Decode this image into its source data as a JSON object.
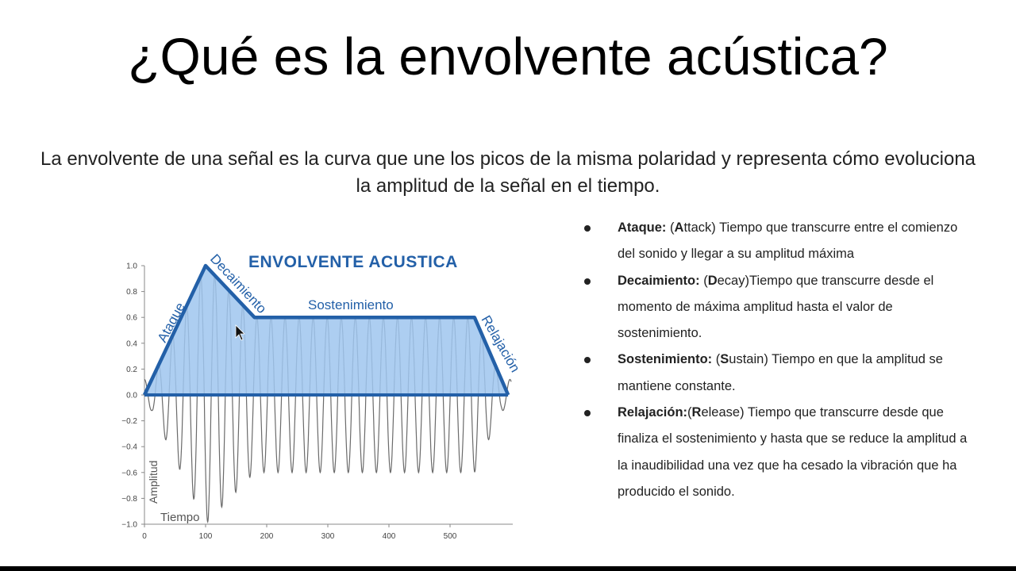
{
  "slide": {
    "title": "¿Qué es la envolvente acústica?",
    "intro": "La envolvente de una señal es la curva que une los picos de la misma polaridad y representa cómo evoluciona la amplitud de la señal en el tiempo."
  },
  "figure": {
    "banner": "ENVOLVENTE ACUSTICA",
    "stage_labels": {
      "attack": "Ataque",
      "decay": "Decaimiento",
      "sustain": "Sostenimiento",
      "release": "Relajación"
    },
    "y_axis_label": "Amplitud",
    "x_axis_label": "Tiempo",
    "colors": {
      "envelope": "#2360a8",
      "fill": "#9fc6ee",
      "wave": "#6b6b6b"
    }
  },
  "chart_data": {
    "type": "line",
    "title": "ENVOLVENTE ACUSTICA",
    "xlabel": "Tiempo",
    "ylabel": "Amplitud",
    "xlim": [
      0,
      600
    ],
    "ylim": [
      -1.0,
      1.0
    ],
    "x_ticks": [
      "0",
      "100",
      "200",
      "300",
      "400",
      "500"
    ],
    "y_ticks": [
      "1.0",
      "0.8",
      "0.6",
      "0.4",
      "0.2",
      "0.0",
      "−0.2",
      "−0.4",
      "−0.6",
      "−0.8",
      "−1.0"
    ],
    "envelope": {
      "x": [
        0,
        100,
        180,
        540,
        595
      ],
      "y": [
        0.0,
        1.0,
        0.6,
        0.6,
        0.0
      ]
    },
    "series": [
      {
        "values": []
      }
    ]
  },
  "bullets": [
    {
      "term": "Ataque:",
      "paren_open": " (",
      "letter": "A",
      "rest": "ttack) Tiempo que transcurre entre el comienzo del sonido y llegar a su amplitud máxima"
    },
    {
      "term": "Decaimiento:",
      "paren_open": " (",
      "letter": "D",
      "rest": "ecay)Tiempo que transcurre desde el momento de máxima amplitud hasta el valor de sostenimiento."
    },
    {
      "term": "Sostenimiento:",
      "paren_open": " (",
      "letter": "S",
      "rest": "ustain) Tiempo en que la amplitud se mantiene constante."
    },
    {
      "term": "Relajación:",
      "paren_open": "(",
      "letter": "R",
      "rest": "elease) Tiempo que transcurre desde que finaliza el sostenimiento y hasta que se reduce la amplitud a la inaudibilidad una vez que ha cesado la vibración que ha producido el sonido."
    }
  ]
}
